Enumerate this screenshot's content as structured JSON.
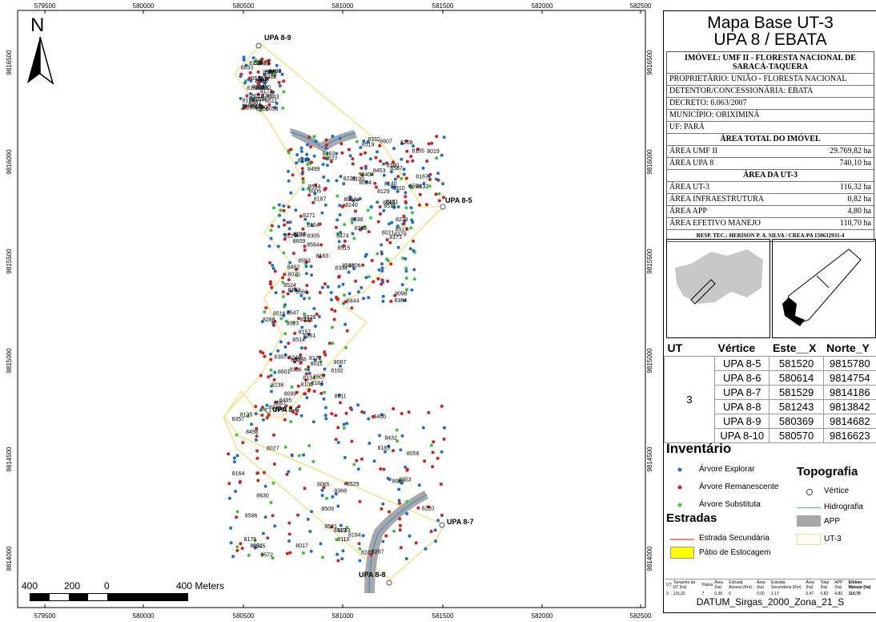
{
  "map": {
    "x_ticks": [
      "579500",
      "580000",
      "580500",
      "581000",
      "581500",
      "582000",
      "582500"
    ],
    "y_ticks": [
      "9816500",
      "9816000",
      "9815500",
      "9815000",
      "9814500",
      "9814000"
    ],
    "north_label": "N",
    "vertex_labels": [
      "UPA 8-9",
      "UPA 8-5",
      "UPA 8-6",
      "UPA 8-7",
      "UPA 8-8"
    ],
    "tree_labels": [
      "8606",
      "8607",
      "8609",
      "8611",
      "8596",
      "8588",
      "8587",
      "8584",
      "8601",
      "8630",
      "8627",
      "8632",
      "8548",
      "8547",
      "8545",
      "8557",
      "8558",
      "8553",
      "8507",
      "8509",
      "8506",
      "8472",
      "8474",
      "8505",
      "8432",
      "8500",
      "8499",
      "8462",
      "8495",
      "8498",
      "8490",
      "8453",
      "8444",
      "8397",
      "8400",
      "8403",
      "8404",
      "8364",
      "8351",
      "8353",
      "8360",
      "8380",
      "8334",
      "8288",
      "8287",
      "8312",
      "8332",
      "8379",
      "8349",
      "8368",
      "8382",
      "8310",
      "8271",
      "8306",
      "8357",
      "8293",
      "8302",
      "8305",
      "8249",
      "8245",
      "8243",
      "8240",
      "8238",
      "8236",
      "8233",
      "8253",
      "8229",
      "8227",
      "8223",
      "8220",
      "8204",
      "8199",
      "8198",
      "8192",
      "8194",
      "8205",
      "8208",
      "8124",
      "8067",
      "8065",
      "8058",
      "8006",
      "8010",
      "8011",
      "8017",
      "8018",
      "8019",
      "8021",
      "8023",
      "8027",
      "8033",
      "8034",
      "8038",
      "8043",
      "8056",
      "8059",
      "8061",
      "8075",
      "8076",
      "8080",
      "8088",
      "8094",
      "8098",
      "8099",
      "8101",
      "8103",
      "8105",
      "8106",
      "8108",
      "8110",
      "8128",
      "8129",
      "8130",
      "8134",
      "8135",
      "8136",
      "8140",
      "8143",
      "8157",
      "8164",
      "8165",
      "8167",
      "8171",
      "8172",
      "8175",
      "8179",
      "8181",
      "8183",
      "8184",
      "8185",
      "8186",
      "8187",
      "8524",
      "8528",
      "8529",
      "8562",
      "8564",
      "8566",
      "8567",
      "8572",
      "8576",
      "8519",
      "8517",
      "8514",
      "8513",
      "8511",
      "8512",
      "8515",
      "8516",
      "8521",
      "8526",
      "8527"
    ],
    "scale": {
      "labels": [
        "400",
        "200",
        "0",
        "400 Meters"
      ]
    }
  },
  "panel": {
    "title_line1": "Mapa Base UT-3",
    "title_line2": "UPA 8 / EBATA",
    "imovel": "IMÓVEL: UMF II - FLORESTA NACIONAL DE SARACÁ-TAQUERA",
    "proprietario": "PROPRIETÁRIO: UNIÃO - FLORESTA NACIONAL",
    "detentor": "DETENTOR/CONCESSIONÁRIA: EBATA",
    "decreto": "DECRETO: 6.063/2007",
    "municipio": "MUNICÍPIO: ORIXIMINÁ",
    "uf": "UF: PARÁ",
    "area_total_header": "ÁREA TOTAL DO IMÓVEL",
    "area_umf_label": "ÁREA UMF II",
    "area_umf_value": "29.769,82 ha",
    "area_upa_label": "ÁREA UPA 8",
    "area_upa_value": "740,10 ha",
    "area_ut_header": "ÁREA DA UT-3",
    "area_ut_label": "ÁREA UT-3",
    "area_ut_value": "116,32 ha",
    "area_infra_label": "ÁREA INFRAESTRUTURA",
    "area_infra_value": "0,82 ha",
    "area_app_label": "ÁREA APP",
    "area_app_value": "4,80 ha",
    "area_efetivo_label": "ÁREA EFETIVO MANEJO",
    "area_efetivo_value": "110,70 ha",
    "resp_tec": "RESP. TEC.: HERISON P. A. SILVA / CREA-PA 150632931-4"
  },
  "vertices": {
    "headers": [
      "UT",
      "Vértice",
      "Este__X",
      "Norte_Y"
    ],
    "ut": "3",
    "rows": [
      {
        "v": "UPA 8-5",
        "x": "581520",
        "y": "9815780"
      },
      {
        "v": "UPA 8-6",
        "x": "580614",
        "y": "9814754"
      },
      {
        "v": "UPA 8-7",
        "x": "581529",
        "y": "9814186"
      },
      {
        "v": "UPA 8-8",
        "x": "581243",
        "y": "9813842"
      },
      {
        "v": "UPA 8-9",
        "x": "580369",
        "y": "9814682"
      },
      {
        "v": "UPA 8-10",
        "x": "580570",
        "y": "9816623"
      }
    ]
  },
  "legend": {
    "inventario_title": "Inventário",
    "explorar": "Árvore Explorar",
    "remanescente": "Árvore Remanescente",
    "substituta": "Árvore Substituta",
    "estradas_title": "Estradas",
    "estrada_sec": "Estrada Secundária",
    "patio": "Pátio de Estocagem",
    "topografia_title": "Topografia",
    "vertice": "Vértice",
    "hidrografia": "Hidrografia",
    "app": "APP",
    "ut3": "UT-3",
    "colors": {
      "explorar": "#1f6fd1",
      "remanescente": "#d41f1f",
      "substituta": "#3cc43c",
      "road": "#ff7f7f",
      "patio": "#ffff00",
      "hydro": "#4aa3df",
      "app": "#a6a6a6",
      "ut": "#f5e97a"
    }
  },
  "summary_table": {
    "headers": [
      "UT",
      "Tamanho da UT (ha)",
      "Pátios",
      "Área (ha)",
      "Estrada Acesso (Km)",
      "Área (ha)",
      "Estrada Secundária (Km)",
      "Área (ha)",
      "Total (ha)",
      "APP (ha)",
      "Efetivo Manejo (ha)"
    ],
    "row": [
      "3",
      "116,32",
      "7",
      "0,35",
      "0",
      "0,00",
      "1,17",
      "0,47",
      "0,82",
      "4,80",
      "110,70"
    ]
  },
  "datum": "DATUM_Sirgas_2000_Zona_21_S"
}
